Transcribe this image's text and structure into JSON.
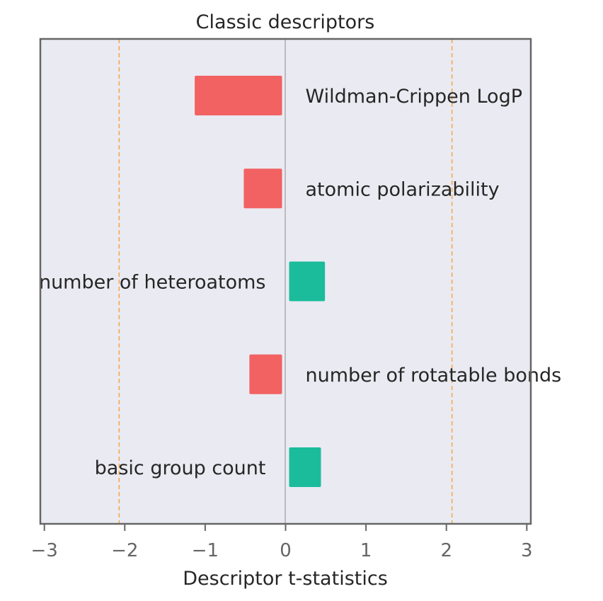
{
  "chart_data": {
    "type": "bar",
    "orientation": "horizontal",
    "title": "Classic descriptors",
    "xlabel": "Descriptor t-statistics",
    "xlim": [
      -3.05,
      3.05
    ],
    "xticks": [
      -3,
      -2,
      -1,
      0,
      1,
      2,
      3
    ],
    "xtick_labels": [
      "−3",
      "−2",
      "−1",
      "0",
      "1",
      "2",
      "3"
    ],
    "grid": false,
    "threshold_lines": [
      -2.07,
      2.07
    ],
    "categories": [
      "Wildman-Crippen LogP",
      "atomic polarizability",
      "number of heteroatoms",
      "number of rotatable bonds",
      "basic group count"
    ],
    "values": [
      -1.13,
      -0.52,
      0.49,
      -0.45,
      0.44
    ],
    "colors": {
      "negative": "#f26262",
      "positive": "#1abc9c",
      "threshold": "#f5a742",
      "background": "#eaeaf2",
      "zero_line": "#8c8c8c",
      "frame": "#666666"
    }
  }
}
